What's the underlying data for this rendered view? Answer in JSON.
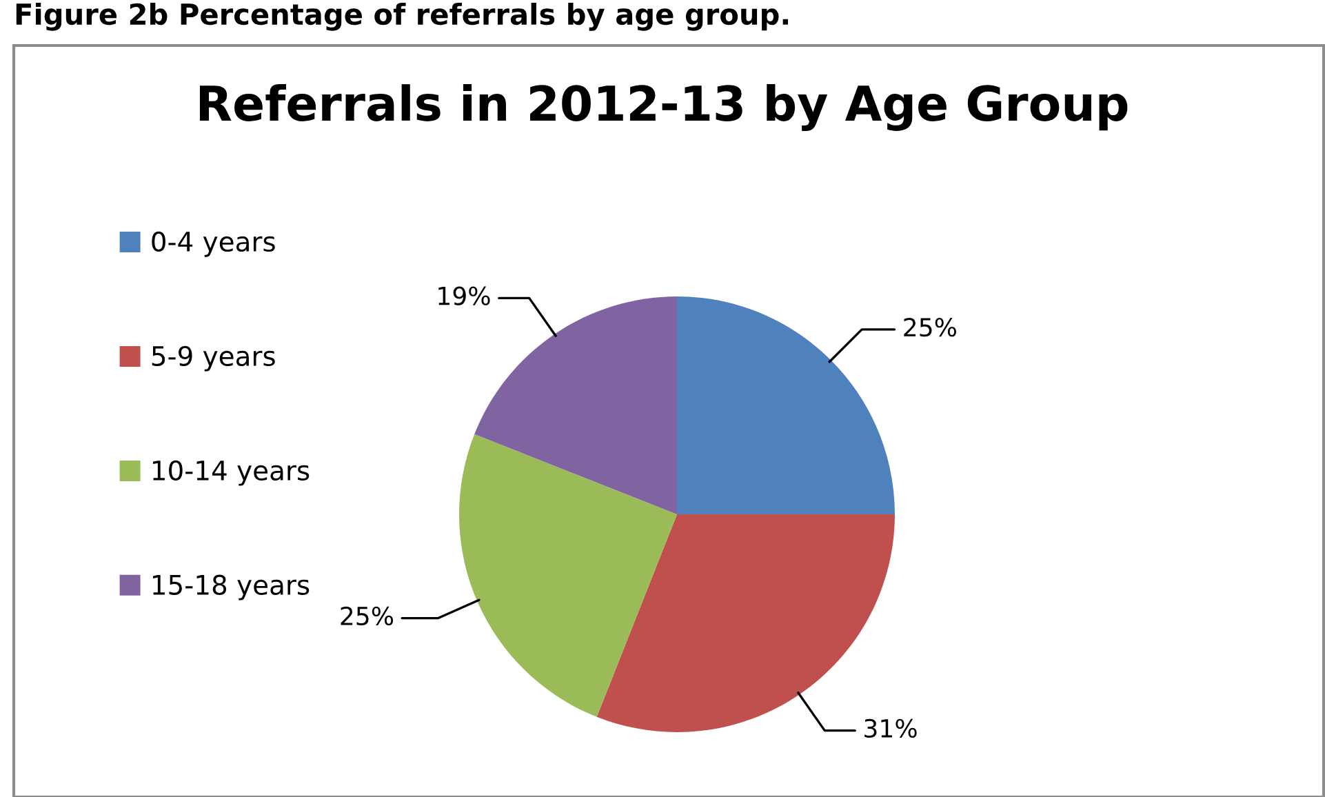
{
  "chart_data": {
    "type": "pie",
    "title": "Referrals in 2012-13 by Age Group",
    "annotations": [
      "Figure 2b Percentage of referrals by age group."
    ],
    "categories": [
      "0-4 years",
      "5-9 years",
      "10-14 years",
      "15-18 years"
    ],
    "values": [
      25,
      31,
      25,
      19
    ],
    "value_labels": [
      "25%",
      "31%",
      "25%",
      "19%"
    ],
    "colors": [
      "#4f81bd",
      "#c0504d",
      "#9bbb59",
      "#8064a2"
    ],
    "legend": "left"
  }
}
